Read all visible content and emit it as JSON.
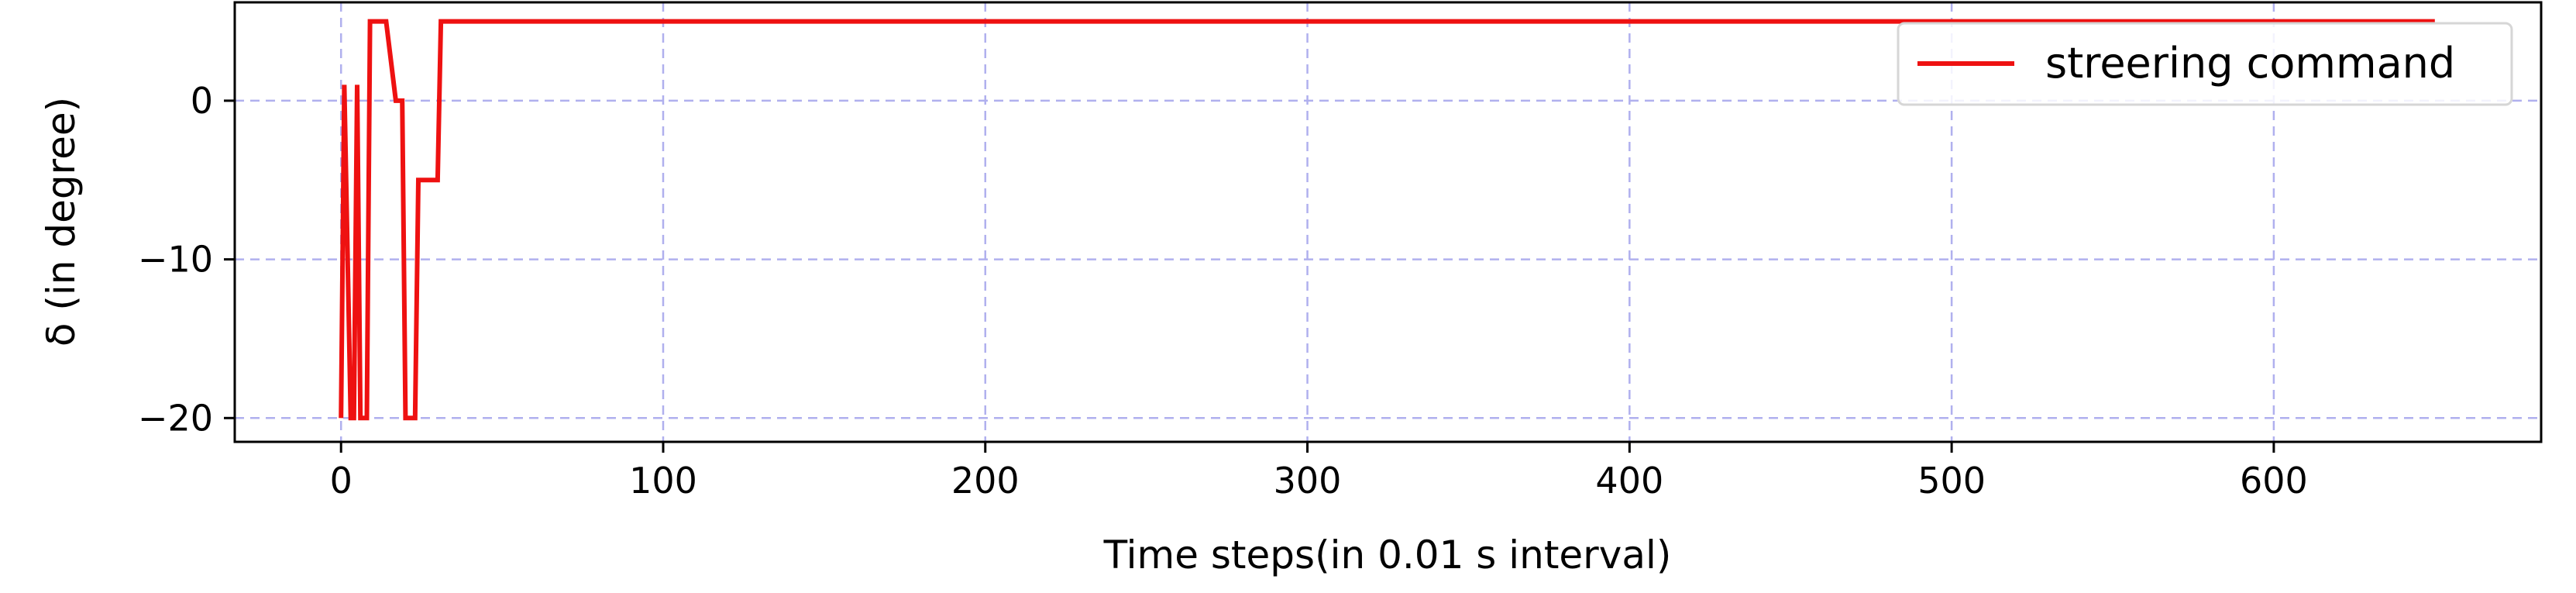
{
  "chart_data": {
    "type": "line",
    "title": "",
    "xlabel": "Time steps(in 0.01 s interval)",
    "ylabel": "δ (in degree)",
    "xlim": [
      -33,
      683
    ],
    "ylim": [
      -21.5,
      6.2
    ],
    "xticks": [
      0,
      100,
      200,
      300,
      400,
      500,
      600
    ],
    "yticks": [
      -20,
      -10,
      0
    ],
    "ytick_labels": [
      "−20",
      "−10",
      "0"
    ],
    "grid": true,
    "grid_style": "dashed",
    "grid_color": "#b0b0ee",
    "legend_position": "top-right",
    "series": [
      {
        "name": "streering command",
        "color": "#ee1111",
        "x": [
          0,
          1,
          3,
          4,
          5,
          6,
          7,
          8,
          9,
          10,
          14,
          17,
          19,
          20,
          21,
          23,
          24,
          25,
          30,
          31,
          650
        ],
        "y": [
          -20,
          1,
          -20,
          -20,
          1,
          -20,
          -20,
          -20,
          5,
          5,
          5,
          0,
          0,
          -20,
          -20,
          -20,
          -5,
          -5,
          -5,
          5,
          5
        ]
      }
    ]
  }
}
